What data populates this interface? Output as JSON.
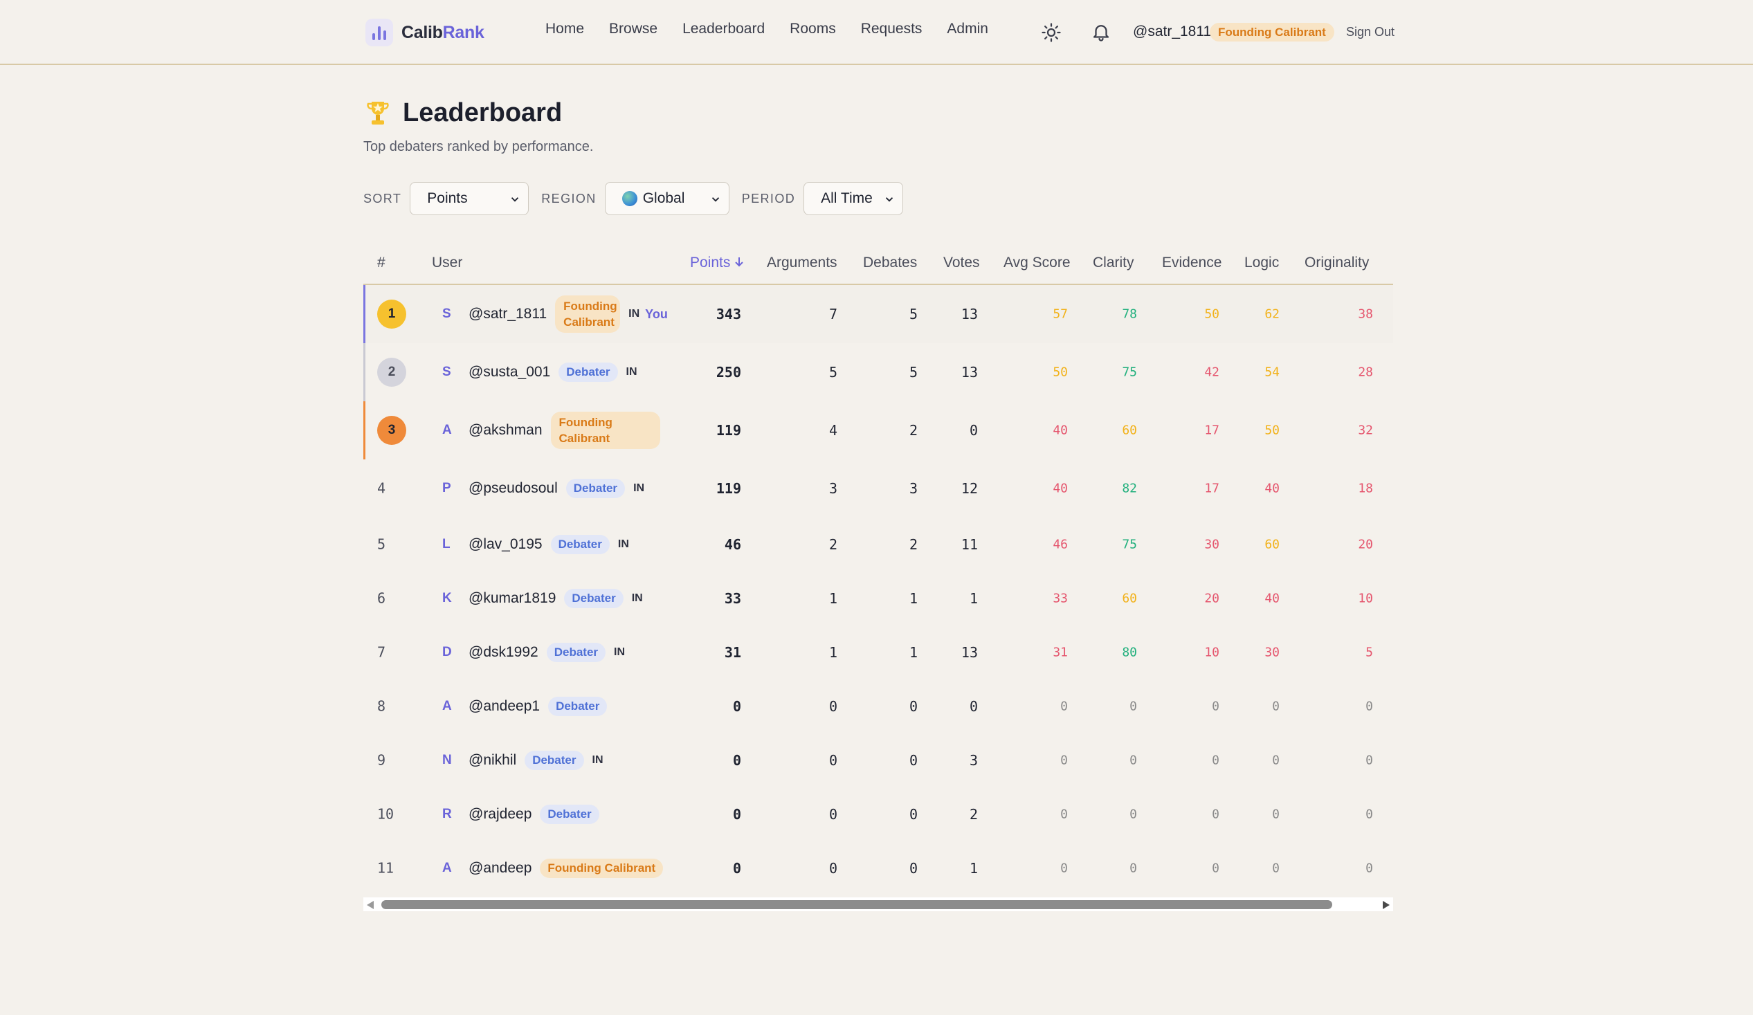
{
  "brand": {
    "name_part1": "Calib",
    "name_part2": "Rank"
  },
  "nav": {
    "links": [
      "Home",
      "Browse",
      "Leaderboard",
      "Rooms",
      "Requests",
      "Admin"
    ],
    "user": "@satr_1811",
    "user_badge": "Founding Calibrant",
    "sign_out": "Sign Out",
    "icons": {
      "theme": "sun-icon",
      "notifications": "bell-icon"
    }
  },
  "page": {
    "title": "Leaderboard",
    "subtitle": "Top debaters ranked by performance.",
    "title_icon": "trophy-icon"
  },
  "filters": {
    "sort_label": "SORT",
    "sort_value": "Points",
    "region_label": "REGION",
    "region_value": "Global",
    "period_label": "PERIOD",
    "period_value": "All Time"
  },
  "table": {
    "headers": {
      "rank": "#",
      "user": "User",
      "points": "Points",
      "arguments": "Arguments",
      "debates": "Debates",
      "votes": "Votes",
      "avg_score": "Avg Score",
      "clarity": "Clarity",
      "evidence": "Evidence",
      "logic": "Logic",
      "originality": "Originality"
    },
    "rows": [
      {
        "rank": "1",
        "initial": "S",
        "user": "@satr_1811",
        "badge": "Founding Calibrant",
        "country": "IN",
        "you": "You",
        "points": "343",
        "arguments": "7",
        "debates": "5",
        "votes": "13",
        "avg": "57",
        "clarity": "78",
        "evidence": "50",
        "logic": "62",
        "originality": "38"
      },
      {
        "rank": "2",
        "initial": "S",
        "user": "@susta_001",
        "badge": "Debater",
        "country": "IN",
        "points": "250",
        "arguments": "5",
        "debates": "5",
        "votes": "13",
        "avg": "50",
        "clarity": "75",
        "evidence": "42",
        "logic": "54",
        "originality": "28"
      },
      {
        "rank": "3",
        "initial": "A",
        "user": "@akshman",
        "badge": "Founding Calibrant",
        "points": "119",
        "arguments": "4",
        "debates": "2",
        "votes": "0",
        "avg": "40",
        "clarity": "60",
        "evidence": "17",
        "logic": "50",
        "originality": "32"
      },
      {
        "rank": "4",
        "initial": "P",
        "user": "@pseudosoul",
        "badge": "Debater",
        "country": "IN",
        "points": "119",
        "arguments": "3",
        "debates": "3",
        "votes": "12",
        "avg": "40",
        "clarity": "82",
        "evidence": "17",
        "logic": "40",
        "originality": "18"
      },
      {
        "rank": "5",
        "initial": "L",
        "user": "@lav_0195",
        "badge": "Debater",
        "country": "IN",
        "points": "46",
        "arguments": "2",
        "debates": "2",
        "votes": "11",
        "avg": "46",
        "clarity": "75",
        "evidence": "30",
        "logic": "60",
        "originality": "20"
      },
      {
        "rank": "6",
        "initial": "K",
        "user": "@kumar1819",
        "badge": "Debater",
        "country": "IN",
        "points": "33",
        "arguments": "1",
        "debates": "1",
        "votes": "1",
        "avg": "33",
        "clarity": "60",
        "evidence": "20",
        "logic": "40",
        "originality": "10"
      },
      {
        "rank": "7",
        "initial": "D",
        "user": "@dsk1992",
        "badge": "Debater",
        "country": "IN",
        "points": "31",
        "arguments": "1",
        "debates": "1",
        "votes": "13",
        "avg": "31",
        "clarity": "80",
        "evidence": "10",
        "logic": "30",
        "originality": "5"
      },
      {
        "rank": "8",
        "initial": "A",
        "user": "@andeep1",
        "badge": "Debater",
        "points": "0",
        "arguments": "0",
        "debates": "0",
        "votes": "0",
        "avg": "0",
        "clarity": "0",
        "evidence": "0",
        "logic": "0",
        "originality": "0"
      },
      {
        "rank": "9",
        "initial": "N",
        "user": "@nikhil",
        "badge": "Debater",
        "country": "IN",
        "points": "0",
        "arguments": "0",
        "debates": "0",
        "votes": "3",
        "avg": "0",
        "clarity": "0",
        "evidence": "0",
        "logic": "0",
        "originality": "0"
      },
      {
        "rank": "10",
        "initial": "R",
        "user": "@rajdeep",
        "badge": "Debater",
        "points": "0",
        "arguments": "0",
        "debates": "0",
        "votes": "2",
        "avg": "0",
        "clarity": "0",
        "evidence": "0",
        "logic": "0",
        "originality": "0"
      },
      {
        "rank": "11",
        "initial": "A",
        "user": "@andeep",
        "badge": "Founding Calibrant",
        "points": "0",
        "arguments": "0",
        "debates": "0",
        "votes": "1",
        "avg": "0",
        "clarity": "0",
        "evidence": "0",
        "logic": "0",
        "originality": "0"
      }
    ]
  },
  "colors": {
    "accent": "#6a63d9",
    "founding": "#d97a17",
    "debater": "#4f71d6",
    "score_high": "#22b07d",
    "score_mid": "#f2b21b",
    "score_low": "#e5566e",
    "score_zero": "#8a8a8a",
    "rank1": "#f6c12e",
    "rank2": "#d4d4dc",
    "rank3": "#ef8a3a"
  }
}
